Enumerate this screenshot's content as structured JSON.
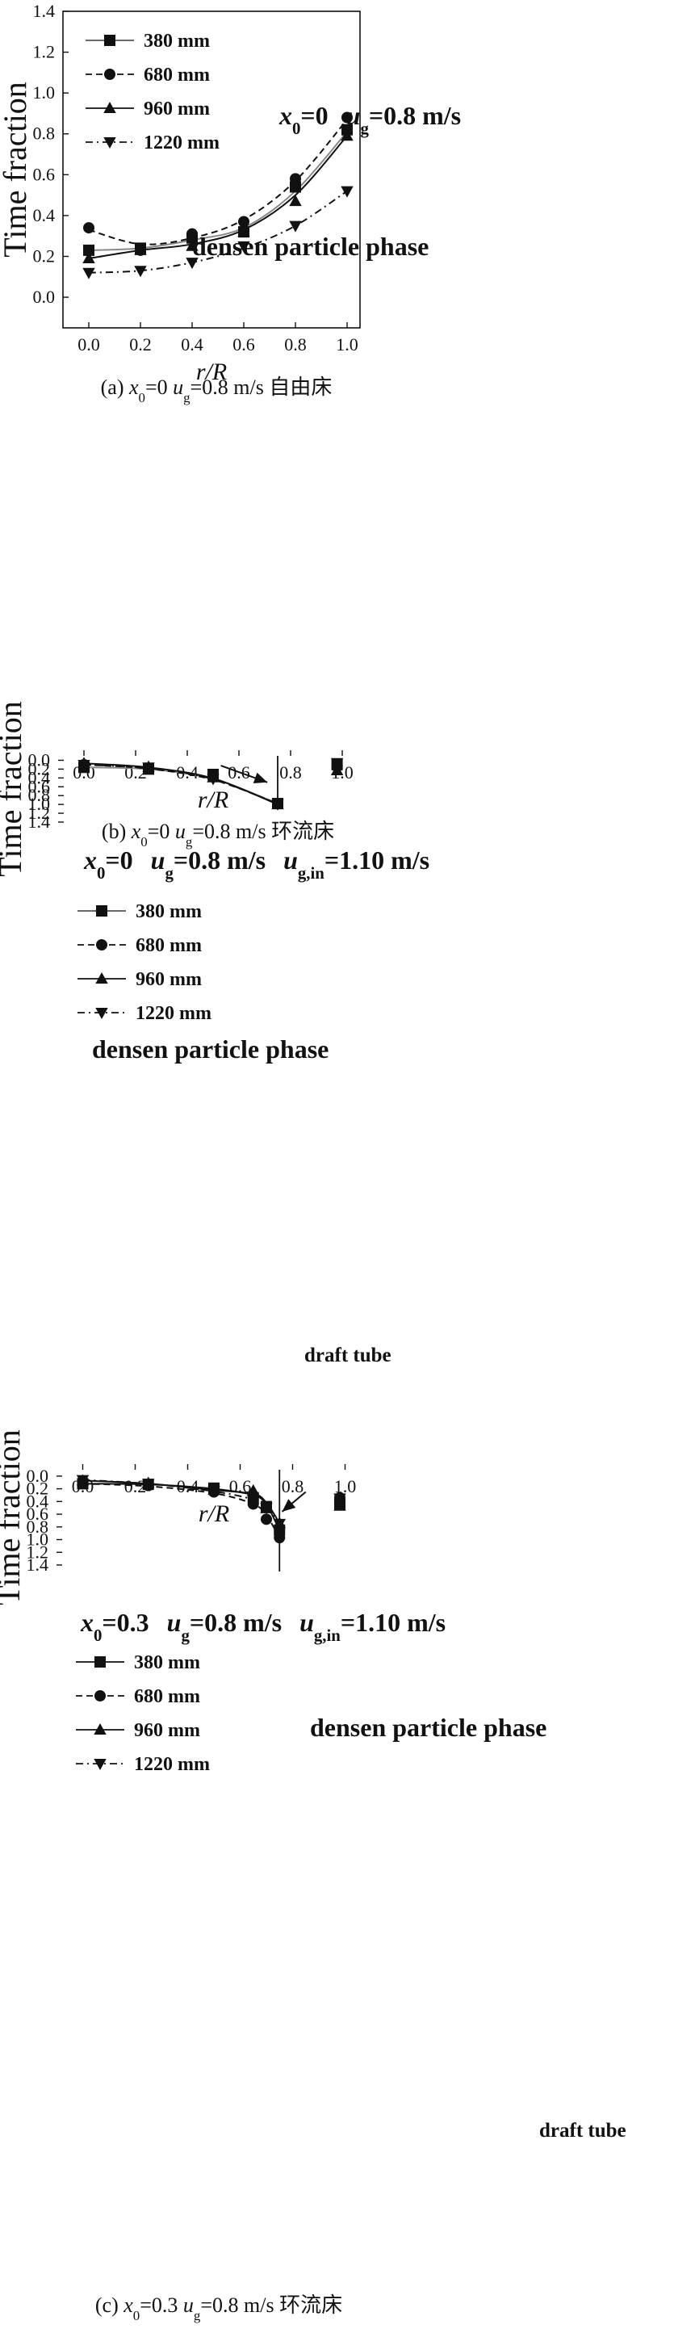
{
  "chart_data": [
    {
      "type": "scatter",
      "id": "a",
      "caption_parts": [
        "(a) ",
        "x",
        "0",
        "=0 ",
        "u",
        "g",
        "=0.8 m/s 自由床"
      ],
      "annotation": {
        "parts": [
          "x",
          "0",
          "=0",
          "u",
          "g",
          "=0.8 m/s"
        ]
      },
      "phase_label": "densen particle phase",
      "xlabel": "r/R",
      "ylabel": "Time fraction",
      "xlim": [
        -0.1,
        1.05
      ],
      "ylim": [
        -0.15,
        1.4
      ],
      "xticks": [
        "0.0",
        "0.2",
        "0.4",
        "0.6",
        "0.8",
        "1.0"
      ],
      "yticks": [
        "0.0",
        "0.2",
        "0.4",
        "0.6",
        "0.8",
        "1.0",
        "1.2",
        "1.4"
      ],
      "legend": [
        "380 mm",
        "680 mm",
        "960 mm",
        "1220 mm"
      ],
      "legend_position": "top-left",
      "draft_tube": null,
      "series": [
        {
          "name": "380 mm",
          "marker": "square",
          "line": "solid",
          "color": "#888888",
          "x": [
            0.0,
            0.2,
            0.4,
            0.6,
            0.8,
            1.0
          ],
          "y": [
            0.23,
            0.24,
            0.29,
            0.32,
            0.54,
            0.82
          ],
          "fit": [
            [
              0,
              0.23
            ],
            [
              0.2,
              0.24
            ],
            [
              0.4,
              0.28
            ],
            [
              0.6,
              0.34
            ],
            [
              0.8,
              0.52
            ],
            [
              1.0,
              0.81
            ]
          ]
        },
        {
          "name": "680 mm",
          "marker": "circle",
          "line": "dashed",
          "color": "#111111",
          "x": [
            0.0,
            0.2,
            0.4,
            0.6,
            0.8,
            1.0
          ],
          "y": [
            0.34,
            0.23,
            0.31,
            0.37,
            0.58,
            0.88
          ],
          "fit": [
            [
              0,
              0.33
            ],
            [
              0.2,
              0.26
            ],
            [
              0.4,
              0.29
            ],
            [
              0.6,
              0.38
            ],
            [
              0.8,
              0.57
            ],
            [
              1.0,
              0.87
            ]
          ]
        },
        {
          "name": "960 mm",
          "marker": "triangle-up",
          "line": "solid",
          "color": "#111111",
          "x": [
            0.0,
            0.2,
            0.4,
            0.6,
            0.8,
            1.0
          ],
          "y": [
            0.19,
            0.23,
            0.25,
            0.32,
            0.47,
            0.79
          ],
          "fit": [
            [
              0,
              0.19
            ],
            [
              0.2,
              0.23
            ],
            [
              0.4,
              0.26
            ],
            [
              0.6,
              0.33
            ],
            [
              0.8,
              0.5
            ],
            [
              1.0,
              0.79
            ]
          ]
        },
        {
          "name": "1220 mm",
          "marker": "triangle-down",
          "line": "dashdot",
          "color": "#111111",
          "x": [
            0.0,
            0.2,
            0.4,
            0.6,
            0.8,
            1.0
          ],
          "y": [
            0.12,
            0.13,
            0.17,
            0.25,
            0.35,
            0.52
          ],
          "fit": [
            [
              0,
              0.12
            ],
            [
              0.2,
              0.13
            ],
            [
              0.4,
              0.17
            ],
            [
              0.6,
              0.24
            ],
            [
              0.8,
              0.35
            ],
            [
              1.0,
              0.52
            ]
          ]
        }
      ]
    },
    {
      "type": "scatter",
      "id": "b",
      "caption_parts": [
        "(b) ",
        "x",
        "0",
        "=0 ",
        "u",
        "g",
        "=0.8 m/s 环流床"
      ],
      "annotation": {
        "parts": [
          "x",
          "0",
          "=0",
          "u",
          "g",
          "=0.8 m/s",
          "u",
          "g,in",
          "=1.10 m/s"
        ]
      },
      "phase_label": "densen particle phase",
      "draft_label": "draft tube",
      "xlabel": "r/R",
      "ylabel": "Time fraction",
      "xlim": [
        -0.1,
        1.1
      ],
      "ylim": [
        -0.1,
        1.4
      ],
      "xticks": [
        "0.0",
        "0.2",
        "0.4",
        "0.6",
        "0.8",
        "1.0"
      ],
      "yticks": [
        "0.0",
        "0.2",
        "0.4",
        "0.6",
        "0.8",
        "1.0",
        "1.2",
        "1.4"
      ],
      "legend": [
        "380 mm",
        "680 mm",
        "960 mm",
        "1220 mm"
      ],
      "legend_position": "top-left",
      "draft_tube": 0.75,
      "series": [
        {
          "name": "380 mm",
          "marker": "square",
          "line": "solid",
          "color": "#888888",
          "x": [
            0.0,
            0.25,
            0.5,
            0.75,
            0.98
          ],
          "y": [
            0.16,
            0.2,
            0.32,
            0.98,
            0.1
          ],
          "fit": [
            [
              0,
              0.16
            ],
            [
              0.25,
              0.2
            ],
            [
              0.5,
              0.42
            ],
            [
              0.75,
              0.98
            ]
          ]
        },
        {
          "name": "680 mm",
          "marker": "circle",
          "line": "dashed",
          "color": "#111111",
          "x": [
            0.0,
            0.25,
            0.5,
            0.75,
            0.98
          ],
          "y": [
            0.1,
            0.19,
            0.34,
            0.98,
            0.14
          ],
          "fit": [
            [
              0,
              0.1
            ],
            [
              0.25,
              0.19
            ],
            [
              0.5,
              0.44
            ],
            [
              0.75,
              0.98
            ]
          ]
        },
        {
          "name": "960 mm",
          "marker": "triangle-up",
          "line": "solid",
          "color": "#111111",
          "x": [
            0.0,
            0.25,
            0.5,
            0.75,
            0.98
          ],
          "y": [
            0.07,
            0.15,
            0.39,
            1.0,
            0.23
          ],
          "fit": [
            [
              0,
              0.07
            ],
            [
              0.25,
              0.16
            ],
            [
              0.5,
              0.41
            ],
            [
              0.75,
              1.0
            ]
          ]
        },
        {
          "name": "1220 mm",
          "marker": "triangle-down",
          "line": "dashdot",
          "color": "#111111",
          "x": [
            0.0,
            0.25,
            0.5,
            0.75,
            0.98
          ],
          "y": [
            0.1,
            0.16,
            0.42,
            0.99,
            0.06
          ],
          "fit": [
            [
              0,
              0.1
            ],
            [
              0.25,
              0.18
            ],
            [
              0.5,
              0.43
            ],
            [
              0.75,
              0.99
            ]
          ]
        }
      ]
    },
    {
      "type": "scatter",
      "id": "c",
      "caption_parts": [
        "(c) ",
        "x",
        "0",
        "=0.3 ",
        "u",
        "g",
        "=0.8 m/s 环流床"
      ],
      "annotation": {
        "parts": [
          "x",
          "0",
          "=0.3",
          "u",
          "g",
          "=0.8 m/s",
          "u",
          "g,in",
          "=1.10 m/s"
        ]
      },
      "phase_label": "densen particle phase",
      "draft_label": "draft tube",
      "xlabel": "r/R",
      "ylabel": "Time fraction",
      "xlim": [
        -0.1,
        1.1
      ],
      "ylim": [
        -0.1,
        1.4
      ],
      "xticks": [
        "0.0",
        "0.2",
        "0.4",
        "0.6",
        "0.8",
        "1.0"
      ],
      "yticks": [
        "0.0",
        "0.2",
        "0.4",
        "0.6",
        "0.8",
        "1.0",
        "1.2",
        "1.4"
      ],
      "legend": [
        "380 mm",
        "680 mm",
        "960 mm",
        "1220 mm"
      ],
      "legend_position": "top-left",
      "draft_tube": 0.75,
      "series": [
        {
          "name": "380 mm",
          "marker": "square",
          "line": "solid",
          "color": "#111111",
          "x": [
            0.0,
            0.25,
            0.5,
            0.65,
            0.7,
            0.75,
            0.98
          ],
          "y": [
            0.12,
            0.13,
            0.19,
            0.34,
            0.48,
            0.85,
            0.45
          ],
          "fit": [
            [
              0,
              0.12
            ],
            [
              0.25,
              0.13
            ],
            [
              0.5,
              0.2
            ],
            [
              0.65,
              0.3
            ],
            [
              0.7,
              0.45
            ],
            [
              0.75,
              0.85
            ]
          ]
        },
        {
          "name": "680 mm",
          "marker": "circle",
          "line": "dashed",
          "color": "#111111",
          "x": [
            0.0,
            0.25,
            0.5,
            0.65,
            0.7,
            0.75,
            0.98
          ],
          "y": [
            0.12,
            0.15,
            0.25,
            0.44,
            0.68,
            0.97,
            0.34
          ],
          "fit": [
            [
              0,
              0.12
            ],
            [
              0.25,
              0.16
            ],
            [
              0.5,
              0.27
            ],
            [
              0.65,
              0.44
            ],
            [
              0.7,
              0.62
            ],
            [
              0.75,
              0.97
            ]
          ]
        },
        {
          "name": "960 mm",
          "marker": "triangle-up",
          "line": "solid",
          "color": "#111111",
          "x": [
            0.0,
            0.25,
            0.5,
            0.65,
            0.7,
            0.75,
            0.98
          ],
          "y": [
            0.07,
            0.11,
            0.22,
            0.23,
            0.51,
            0.74,
            0.47
          ],
          "fit": [
            [
              0,
              0.07
            ],
            [
              0.25,
              0.12
            ],
            [
              0.5,
              0.22
            ],
            [
              0.65,
              0.28
            ],
            [
              0.7,
              0.42
            ],
            [
              0.75,
              0.74
            ]
          ]
        },
        {
          "name": "1220 mm",
          "marker": "triangle-down",
          "line": "dashdot",
          "color": "#111111",
          "x": [
            0.0,
            0.25,
            0.5,
            0.65,
            0.7,
            0.75,
            0.98
          ],
          "y": [
            0.06,
            0.12,
            0.23,
            0.38,
            0.5,
            0.75,
            0.35
          ],
          "fit": [
            [
              0,
              0.06
            ],
            [
              0.25,
              0.12
            ],
            [
              0.5,
              0.24
            ],
            [
              0.65,
              0.37
            ],
            [
              0.7,
              0.5
            ],
            [
              0.75,
              0.75
            ]
          ]
        }
      ]
    }
  ]
}
